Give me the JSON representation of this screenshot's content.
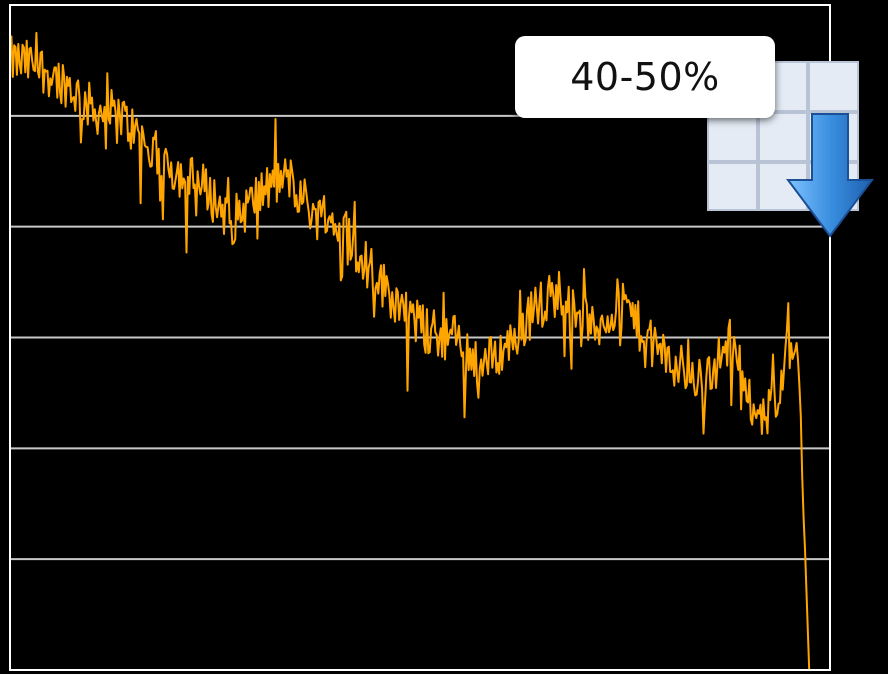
{
  "badge": {
    "label": "40-50%"
  },
  "icons": {
    "sort": "grid-down-arrow-icon"
  },
  "colors": {
    "background": "#000000",
    "line": "#FFA500",
    "grid": "#C8C8C8",
    "frame": "#FFFFFF",
    "badge_bg": "#FFFFFF",
    "arrow": "#3A8FE0"
  },
  "chart_data": {
    "type": "line",
    "title": "",
    "xlabel": "",
    "ylabel": "",
    "ylim": [
      0,
      6
    ],
    "grid": true,
    "legend": "none",
    "anchors": [
      [
        0,
        5.5
      ],
      [
        20,
        5.45
      ],
      [
        40,
        5.3
      ],
      [
        60,
        5.05
      ],
      [
        80,
        5.0
      ],
      [
        100,
        4.7
      ],
      [
        120,
        4.5
      ],
      [
        140,
        4.35
      ],
      [
        160,
        4.05
      ],
      [
        180,
        4.3
      ],
      [
        200,
        4.45
      ],
      [
        220,
        4.1
      ],
      [
        240,
        4.0
      ],
      [
        260,
        3.6
      ],
      [
        280,
        3.3
      ],
      [
        300,
        3.05
      ],
      [
        320,
        3.0
      ],
      [
        340,
        2.75
      ],
      [
        360,
        2.95
      ],
      [
        380,
        3.3
      ],
      [
        400,
        3.45
      ],
      [
        420,
        3.05
      ],
      [
        440,
        3.35
      ],
      [
        460,
        2.95
      ],
      [
        480,
        2.75
      ],
      [
        500,
        2.6
      ],
      [
        520,
        3.0
      ],
      [
        540,
        2.2
      ],
      [
        550,
        2.4
      ],
      [
        560,
        2.95
      ],
      [
        568,
        2.75
      ],
      [
        575,
        0.0
      ],
      [
        590,
        0.0
      ]
    ],
    "noise": 0.22
  }
}
